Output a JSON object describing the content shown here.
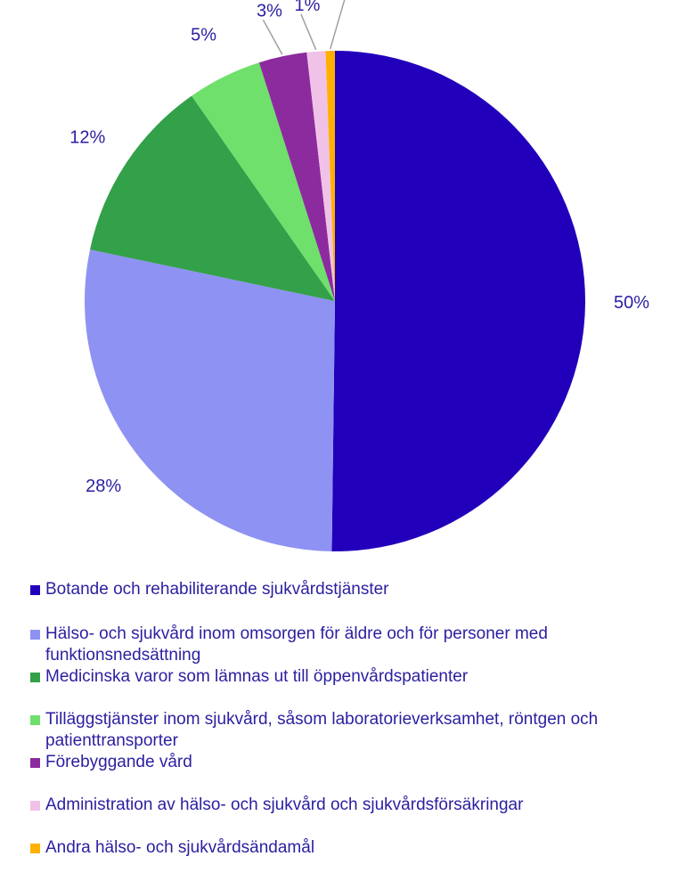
{
  "chart_data": {
    "type": "pie",
    "title": "",
    "start_angle_deg": 0,
    "direction": "clockwise",
    "label_color": "#2a1fa0",
    "slices": [
      {
        "name": "Botande och rehabiliterande sjukvårdstjänster",
        "value": 50.2,
        "label": "50%",
        "color": "#2200bb"
      },
      {
        "name": "Hälso- och sjukvård inom omsorgen för äldre och för personer med funktionsnedsättning",
        "value": 28.1,
        "label": "28%",
        "color": "#8e92f2"
      },
      {
        "name": "Medicinska varor som lämnas ut till öppenvårdspatienter",
        "value": 12.0,
        "label": "12%",
        "color": "#33a04a"
      },
      {
        "name": "Tilläggstjänster inom sjukvård, såsom laboratorieverksamhet, röntgen och patienttransporter",
        "value": 4.8,
        "label": "5%",
        "color": "#6ee06b"
      },
      {
        "name": "Förebyggande vård",
        "value": 3.1,
        "label": "3%",
        "color": "#8c2b9e"
      },
      {
        "name": "Administration av hälso- och sjukvård och sjukvårdsförsäkringar",
        "value": 1.2,
        "label": "1%",
        "color": "#f0c2e8"
      },
      {
        "name": "Andra hälso- och sjukvårdsändamål",
        "value": 0.6,
        "label": "1%",
        "color": "#ffb000"
      }
    ],
    "legend_position": "bottom"
  }
}
